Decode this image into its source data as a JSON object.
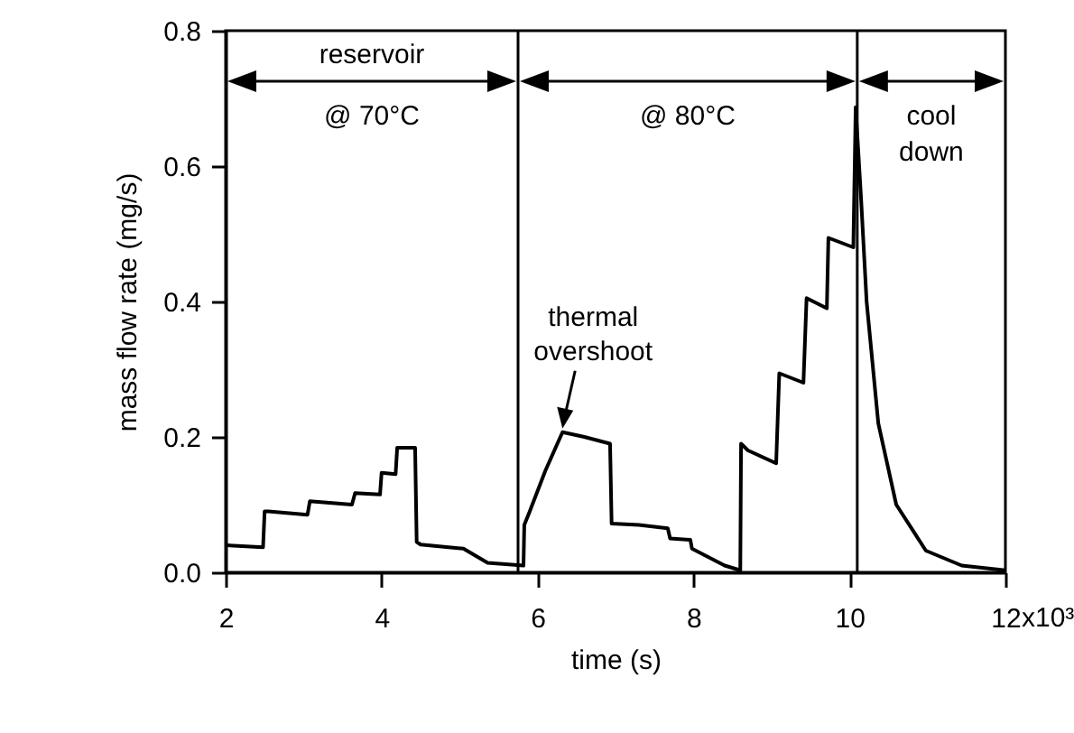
{
  "chart_data": {
    "type": "line",
    "xlabel": "time (s)",
    "ylabel": "mass flow rate (mg/s)",
    "xlim": [
      2,
      12
    ],
    "ylim": [
      0,
      0.8
    ],
    "xticks": [
      2,
      4,
      6,
      8,
      10,
      12
    ],
    "yticks": [
      {
        "value": 0,
        "label": "0.0"
      },
      {
        "value": 0.2,
        "label": "0.2"
      },
      {
        "value": 0.4,
        "label": "0.4"
      },
      {
        "value": 0.6,
        "label": "0.6"
      },
      {
        "value": 0.8,
        "label": "0.8"
      }
    ],
    "grid": false,
    "marker": "none",
    "line_style": "solid",
    "x": [
      2.0,
      2.48,
      2.5,
      2.55,
      3.05,
      3.08,
      3.62,
      3.66,
      3.98,
      4.0,
      4.18,
      4.2,
      4.43,
      4.45,
      4.5,
      5.05,
      5.36,
      5.82,
      5.83,
      5.9,
      6.1,
      6.32,
      6.6,
      6.93,
      6.95,
      7.3,
      7.67,
      7.7,
      7.96,
      7.98,
      8.4,
      8.6,
      8.61,
      8.7,
      9.06,
      9.1,
      9.41,
      9.45,
      9.71,
      9.73,
      10.05,
      10.08,
      10.15,
      10.22,
      10.37,
      10.6,
      10.98,
      11.44,
      12.0
    ],
    "series": [
      {
        "color": "#000000",
        "values": [
          0.04,
          0.037,
          0.09,
          0.09,
          0.085,
          0.105,
          0.1,
          0.117,
          0.115,
          0.147,
          0.145,
          0.184,
          0.184,
          0.045,
          0.041,
          0.035,
          0.014,
          0.01,
          0.07,
          0.09,
          0.15,
          0.207,
          0.2,
          0.19,
          0.072,
          0.07,
          0.065,
          0.05,
          0.048,
          0.035,
          0.01,
          0.003,
          0.19,
          0.18,
          0.161,
          0.294,
          0.28,
          0.405,
          0.39,
          0.494,
          0.48,
          0.687,
          0.55,
          0.4,
          0.22,
          0.1,
          0.032,
          0.01,
          0.003
        ]
      }
    ],
    "ref_lines": [
      {
        "axis": "x",
        "value": 5.75
      },
      {
        "axis": "x",
        "value": 10.1
      }
    ],
    "annotations": [
      "reservoir",
      "@ 70°C",
      "@ 80°C",
      "cool\ndown",
      "x10³",
      {
        "text": "thermal\novershoot",
        "x": 6.32,
        "y": 0.207
      }
    ]
  }
}
